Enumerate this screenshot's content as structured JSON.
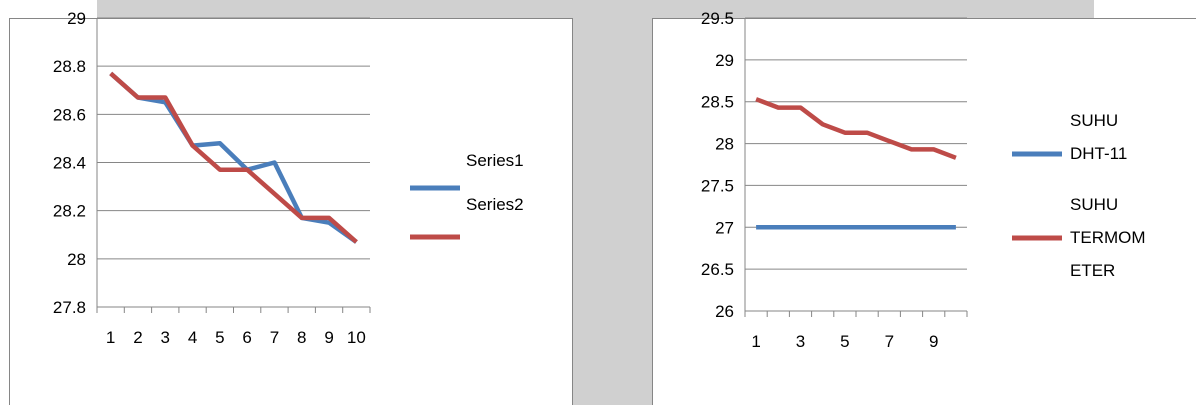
{
  "colors": {
    "series_blue": "#4a7ebb",
    "series_red": "#be4b48",
    "backdrop_gray": "#d0d0d0",
    "frame": "#868686",
    "grid": "#868686"
  },
  "chart_data": [
    {
      "type": "line",
      "title": "",
      "xlabel": "",
      "ylabel": "",
      "x": [
        1,
        2,
        3,
        4,
        5,
        6,
        7,
        8,
        9,
        10
      ],
      "x_tick_labels": [
        "1",
        "2",
        "3",
        "4",
        "5",
        "6",
        "7",
        "8",
        "9",
        "10"
      ],
      "ylim": [
        27.8,
        29
      ],
      "y_tick_labels": [
        "29",
        "28.8",
        "28.6",
        "28.4",
        "28.2",
        "28",
        "27.8"
      ],
      "y_ticks": [
        29,
        28.8,
        28.6,
        28.4,
        28.2,
        28,
        27.8
      ],
      "grid": true,
      "legend_position": "right",
      "series": [
        {
          "name": "Series1",
          "color": "#4a7ebb",
          "values": [
            28.77,
            28.67,
            28.65,
            28.47,
            28.48,
            28.37,
            28.4,
            28.17,
            28.15,
            28.07
          ]
        },
        {
          "name": "Series2",
          "color": "#be4b48",
          "values": [
            28.77,
            28.67,
            28.67,
            28.47,
            28.37,
            28.37,
            28.27,
            28.17,
            28.17,
            28.07
          ]
        }
      ]
    },
    {
      "type": "line",
      "title": "",
      "xlabel": "",
      "ylabel": "",
      "x": [
        1,
        2,
        3,
        4,
        5,
        6,
        7,
        8,
        9,
        10
      ],
      "x_tick_labels": [
        "1",
        "3",
        "5",
        "7",
        "9"
      ],
      "x_tick_values": [
        1,
        3,
        5,
        7,
        9
      ],
      "ylim": [
        26,
        29.5
      ],
      "y_tick_labels": [
        "29.5",
        "29",
        "28.5",
        "28",
        "27.5",
        "27",
        "26.5",
        "26"
      ],
      "y_ticks": [
        29.5,
        29,
        28.5,
        28,
        27.5,
        27,
        26.5,
        26
      ],
      "grid": true,
      "legend_position": "right",
      "series": [
        {
          "name_lines": [
            "SUHU",
            "DHT-11"
          ],
          "color": "#4a7ebb",
          "values": [
            27,
            27,
            27,
            27,
            27,
            27,
            27,
            27,
            27,
            27
          ]
        },
        {
          "name_lines": [
            "SUHU",
            "TERMOM",
            "ETER"
          ],
          "color": "#be4b48",
          "values": [
            28.53,
            28.43,
            28.43,
            28.23,
            28.13,
            28.13,
            28.03,
            27.93,
            27.93,
            27.83
          ]
        }
      ]
    }
  ]
}
